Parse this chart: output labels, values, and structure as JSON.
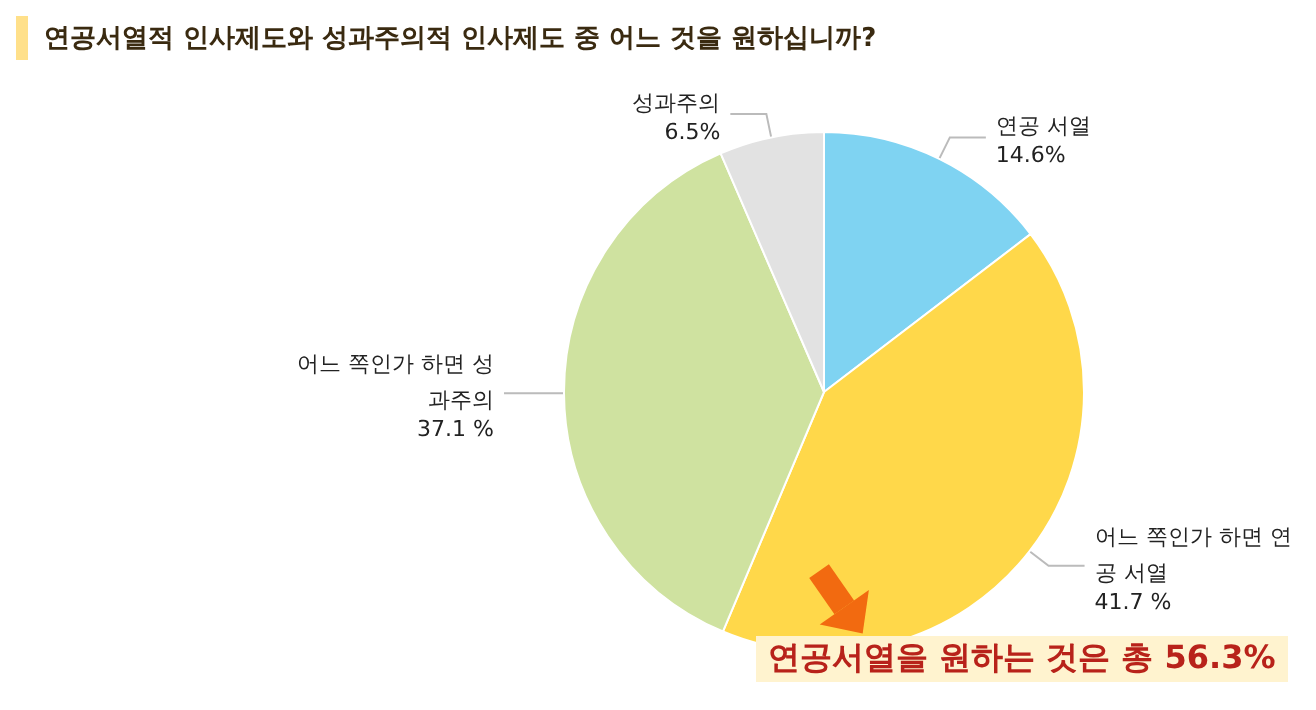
{
  "chart_data": {
    "type": "pie",
    "title": "연공서열적 인사제도와 성과주의적 인사제도 중 어느 것을 원하십니까?",
    "categories": [
      "연공 서열",
      "어느 쪽인가 하면 연공 서열",
      "어느 쪽인가 하면 성과주의",
      "성과주의"
    ],
    "values": [
      14.6,
      41.7,
      37.1,
      6.5
    ],
    "colors": [
      "#7fd3f2",
      "#ffd84a",
      "#cfe2a0",
      "#e2e2e2"
    ],
    "value_labels": [
      "14.6%",
      "41.7 %",
      "37.1 %",
      "6.5%"
    ],
    "annotations": [
      "연공서열을 원하는 것은 총 56.3%"
    ]
  }
}
